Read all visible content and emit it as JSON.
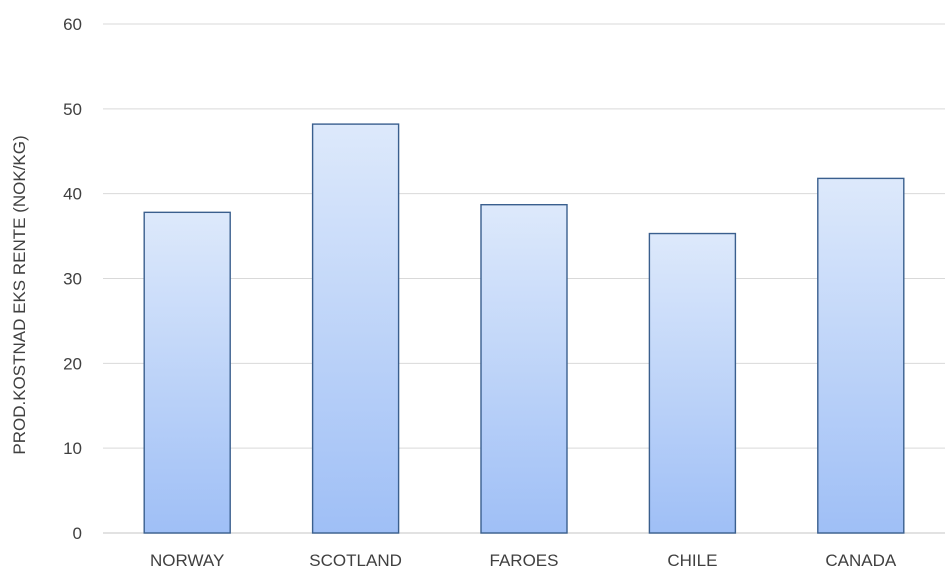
{
  "chart_data": {
    "type": "bar",
    "title": "",
    "xlabel": "",
    "ylabel": "PROD.KOSTNAD EKS RENTE (NOK/KG)",
    "categories": [
      "NORWAY",
      "SCOTLAND",
      "FAROES",
      "CHILE",
      "CANADA"
    ],
    "values": [
      37.8,
      48.2,
      38.7,
      35.3,
      41.8
    ],
    "ylim": [
      0,
      60
    ],
    "yticks": [
      "0",
      "10",
      "20",
      "30",
      "40",
      "50",
      "60"
    ],
    "grid": true,
    "legend": "none",
    "colors": {
      "bar_top": "#dde9fb",
      "bar_bottom": "#9fbff6",
      "bar_stroke": "#3a5f8e",
      "grid": "#d9d9d9",
      "text": "#404040"
    }
  }
}
